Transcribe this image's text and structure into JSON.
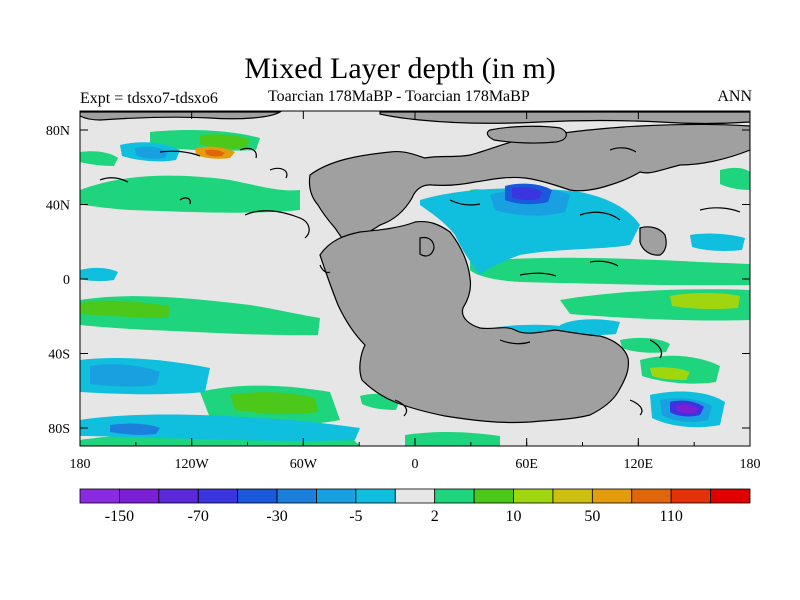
{
  "title": "Mixed Layer depth (in m)",
  "left_subtitle": "Expt = tdsxo7-tdsxo6",
  "center_subtitle": "Toarcian 178MaBP - Toarcian 178MaBP",
  "right_subtitle": "ANN",
  "x_tick_labels": [
    "180",
    "120W",
    "60W",
    "0",
    "60E",
    "120E",
    "180"
  ],
  "y_tick_labels": [
    "80N",
    "40N",
    "0",
    "40S",
    "80S"
  ],
  "colorbar": {
    "colors": [
      "#8a2be2",
      "#7a1fd6",
      "#5a2ad8",
      "#3b35e0",
      "#1a58dc",
      "#1d7fdc",
      "#18a0e0",
      "#10bedd",
      "#e6e6e6",
      "#1ed47c",
      "#4cc81a",
      "#a0d610",
      "#cdbf12",
      "#e39c0c",
      "#e0660a",
      "#e3320a",
      "#e00000"
    ],
    "labels": [
      "-150",
      "-70",
      "-30",
      "-5",
      "2",
      "10",
      "50",
      "110"
    ]
  },
  "colors": {
    "land": "#a0a0a0",
    "ocean_background": "#e6e6e6",
    "coastline": "#000000"
  }
}
